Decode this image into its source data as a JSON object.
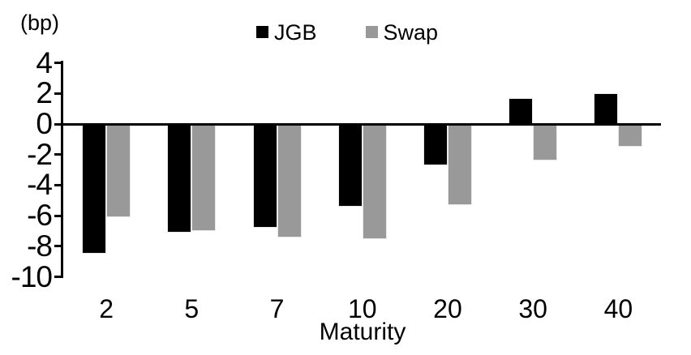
{
  "chart_data": {
    "type": "bar",
    "title": "",
    "unit_label": "(bp)",
    "xlabel": "Maturity",
    "ylabel": "(bp)",
    "categories": [
      "2",
      "5",
      "7",
      "10",
      "20",
      "30",
      "40"
    ],
    "series": [
      {
        "name": "JGB",
        "color": "#000000",
        "values": [
          -8.5,
          -7.1,
          -6.8,
          -5.4,
          -2.7,
          1.7,
          2.0
        ]
      },
      {
        "name": "Swap",
        "color": "#999999",
        "values": [
          -6.1,
          -7.0,
          -7.4,
          -7.5,
          -5.3,
          -2.4,
          -1.5
        ]
      }
    ],
    "ylim": [
      -10,
      4
    ],
    "yticks": [
      4,
      2,
      0,
      -2,
      -4,
      -6,
      -8,
      -10
    ],
    "grid": false,
    "legend_position": "top-center",
    "axis_color": "#000000"
  }
}
